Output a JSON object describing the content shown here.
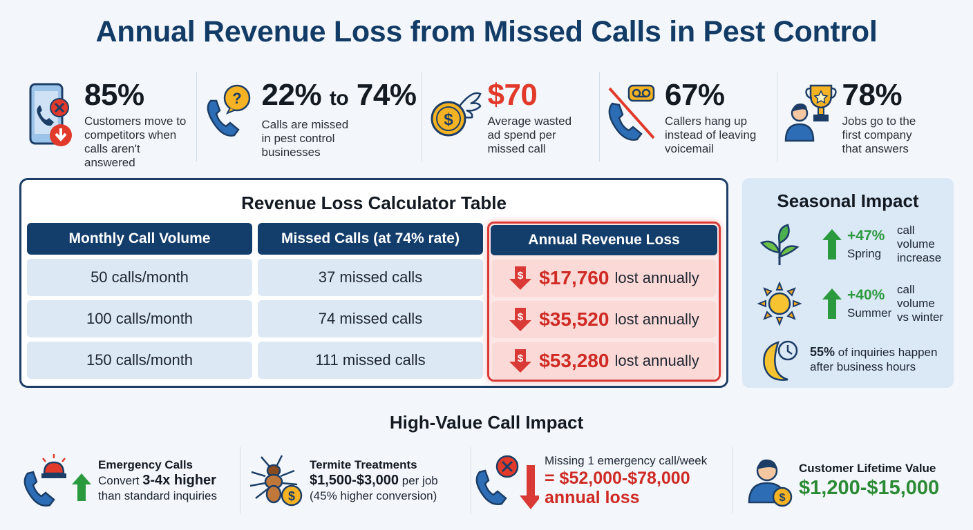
{
  "title": "Annual Revenue Loss from Missed Calls in Pest Control",
  "stats": [
    {
      "value": "85%",
      "desc": "Customers move to\ncompetitors when\ncalls aren't answered",
      "icon": "phone-missed-icon"
    },
    {
      "value_a": "22%",
      "value_mid": "to",
      "value_b": "74%",
      "desc": "Calls are missed\nin pest control\nbusinesses",
      "icon": "phone-question-icon"
    },
    {
      "value": "$70",
      "desc": "Average wasted\nad spend per\nmissed call",
      "icon": "flying-coin-icon"
    },
    {
      "value": "67%",
      "desc": "Callers hang up\ninstead of leaving\nvoicemail",
      "icon": "no-voicemail-icon"
    },
    {
      "value": "78%",
      "desc": "Jobs go to the\nfirst company\nthat answers",
      "icon": "trophy-person-icon"
    }
  ],
  "calculator": {
    "title": "Revenue Loss Calculator Table",
    "headers": [
      "Monthly Call Volume",
      "Missed Calls (at 74% rate)",
      "Annual Revenue Loss"
    ],
    "rows": [
      {
        "volume": "50 calls/month",
        "missed": "37 missed calls",
        "amount": "$17,760",
        "suffix": "lost annually"
      },
      {
        "volume": "100 calls/month",
        "missed": "74 missed calls",
        "amount": "$35,520",
        "suffix": "lost annually"
      },
      {
        "volume": "150 calls/month",
        "missed": "111 missed calls",
        "amount": "$53,280",
        "suffix": "lost annually"
      }
    ],
    "loss_color": "#cf2a24"
  },
  "seasonal": {
    "title": "Seasonal Impact",
    "spring": {
      "pct": "+47%",
      "desc": "call volume\nincrease",
      "season": "Spring",
      "icon": "leaf-icon"
    },
    "summer": {
      "pct": "+40%",
      "desc": "call volume\nvs winter",
      "season": "Summer",
      "icon": "sun-icon"
    },
    "after_hours": {
      "pct": "55%",
      "line1": "of inquiries happen",
      "line2": "after business hours",
      "icon": "moon-clock-icon"
    }
  },
  "high_value": {
    "title": "High-Value Call Impact",
    "emergency": {
      "head": "Emergency Calls",
      "pre": "Convert",
      "bold": "3-4x higher",
      "line2": "than standard inquiries",
      "icon": "emergency-siren-phone-icon"
    },
    "termite": {
      "head": "Termite Treatments",
      "bold": "$1,500-$3,000",
      "post": "per job",
      "line2": "(45% higher conversion)",
      "icon": "termite-coin-icon"
    },
    "missing": {
      "head": "Missing 1 emergency call/week",
      "red1": "= $52,000-$78,000",
      "red2": "annual loss",
      "icon": "missed-call-down-arrow-icon"
    },
    "lifetime": {
      "head": "Customer Lifetime Value",
      "value": "$1,200-$15,000",
      "icon": "customer-coin-icon"
    }
  }
}
